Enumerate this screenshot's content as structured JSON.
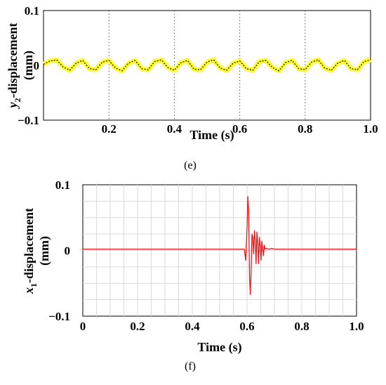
{
  "panels": {
    "e": "(e)",
    "f": "(f)"
  },
  "chart_data": [
    {
      "type": "line",
      "panel": "(e)",
      "xlabel": "Time (s)",
      "ylabel_main": "y",
      "ylabel_sub": "2",
      "ylabel_rest": "-displacement",
      "ylabel_unit": "(mm)",
      "xlim": [
        0,
        1.0
      ],
      "ylim": [
        -0.1,
        0.1
      ],
      "x_ticks": [
        "0.2",
        "0.4",
        "0.6",
        "0.8",
        "1.0"
      ],
      "y_ticks": [
        "0.1",
        "0",
        "−0.1"
      ],
      "grid": "vertical dotted lines at 0.2, 0.4, 0.6, 0.8",
      "colors": {
        "fill": "#ffff33",
        "line": "#333300"
      },
      "series": [
        {
          "x": [
            0,
            0.02,
            0.04,
            0.06,
            0.08,
            0.1,
            0.12,
            0.14,
            0.16,
            0.18,
            0.2,
            0.22,
            0.24,
            0.26,
            0.28,
            0.3,
            0.32,
            0.34,
            0.36,
            0.38,
            0.4,
            0.42,
            0.44,
            0.46,
            0.48,
            0.5,
            0.52,
            0.54,
            0.56,
            0.58,
            0.6,
            0.62,
            0.64,
            0.66,
            0.68,
            0.7,
            0.72,
            0.74,
            0.76,
            0.78,
            0.8,
            0.82,
            0.84,
            0.86,
            0.88,
            0.9,
            0.92,
            0.94,
            0.96,
            0.98,
            1.0
          ],
          "y": [
            0.002,
            0.008,
            0.01,
            -0.003,
            -0.009,
            0.004,
            0.009,
            -0.006,
            -0.008,
            0.006,
            0.009,
            -0.005,
            -0.01,
            0.004,
            0.009,
            -0.006,
            -0.008,
            0.007,
            0.01,
            -0.004,
            -0.009,
            0.005,
            0.009,
            -0.007,
            -0.008,
            0.006,
            0.01,
            -0.005,
            -0.009,
            0.004,
            0.008,
            -0.006,
            -0.009,
            0.007,
            0.009,
            -0.004,
            -0.01,
            0.005,
            0.009,
            -0.006,
            -0.008,
            0.006,
            0.01,
            -0.005,
            -0.009,
            0.004,
            0.009,
            -0.006,
            -0.008,
            0.007,
            0.01
          ]
        }
      ]
    },
    {
      "type": "line",
      "panel": "(f)",
      "xlabel": "Time (s)",
      "ylabel_main": "x",
      "ylabel_sub": "1",
      "ylabel_rest": "-displacement",
      "ylabel_unit": "(mm)",
      "xlim": [
        0,
        1.0
      ],
      "ylim": [
        -0.1,
        0.1
      ],
      "x_ticks": [
        "0",
        "0.2",
        "0.4",
        "0.6",
        "0.8",
        "1.0"
      ],
      "y_ticks": [
        "0.1",
        "0",
        "−0.1"
      ],
      "grid": "on",
      "colors": {
        "line": "#e8191b",
        "grid": "#d9d9d9"
      },
      "series": [
        {
          "x": [
            0,
            0.58,
            0.59,
            0.595,
            0.6,
            0.603,
            0.606,
            0.609,
            0.612,
            0.615,
            0.618,
            0.621,
            0.624,
            0.627,
            0.63,
            0.633,
            0.636,
            0.639,
            0.642,
            0.645,
            0.648,
            0.651,
            0.654,
            0.657,
            0.66,
            0.663,
            0.666,
            0.67,
            0.68,
            0.69,
            0.7,
            1.0
          ],
          "y": [
            0.002,
            0.002,
            0.002,
            -0.015,
            0.035,
            0.082,
            0.06,
            -0.04,
            -0.067,
            -0.03,
            0.025,
            0.02,
            -0.005,
            0.03,
            0.015,
            -0.02,
            0.028,
            0.01,
            -0.02,
            0.02,
            0.006,
            -0.015,
            0.014,
            0.004,
            -0.008,
            0.008,
            0.002,
            0.003,
            0.002,
            0.003,
            0.002,
            0.002
          ]
        }
      ]
    }
  ]
}
